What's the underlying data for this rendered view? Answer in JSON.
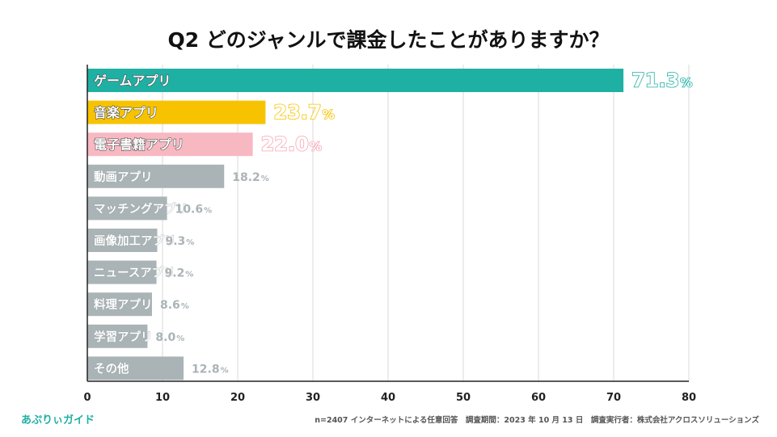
{
  "title": "Q2 どのジャンルで課金したことがありますか？",
  "chart_data": {
    "type": "bar",
    "orientation": "horizontal",
    "categories": [
      "ゲームアプリ",
      "音楽アプリ",
      "電子書籍アプリ",
      "動画アプリ",
      "マッチングアプリ",
      "画像加工アプリ",
      "ニュースアプリ",
      "料理アプリ",
      "学習アプリ",
      "その他"
    ],
    "values": [
      71.3,
      23.7,
      22.0,
      18.2,
      10.6,
      9.3,
      9.2,
      8.6,
      8.0,
      12.8
    ],
    "value_labels": [
      "71.3",
      "23.7",
      "22.0",
      "18.2",
      "10.6",
      "9.3",
      "9.2",
      "8.6",
      "8.0",
      "12.8"
    ],
    "unit": "%",
    "colors": [
      "#1fb0a4",
      "#f7c300",
      "#f8b8c2",
      "#aab4b6",
      "#aab4b6",
      "#aab4b6",
      "#aab4b6",
      "#aab4b6",
      "#aab4b6",
      "#aab4b6"
    ],
    "label_text_colors": [
      "#ffffff",
      "#ffffff",
      "#ffffff",
      "#ffffff",
      "#ffffff",
      "#ffffff",
      "#ffffff",
      "#ffffff",
      "#ffffff",
      "#ffffff"
    ],
    "value_colors": [
      "#1fb0a4",
      "#f7c300",
      "#f8a5b4",
      "#aab4b6",
      "#aab4b6",
      "#aab4b6",
      "#aab4b6",
      "#aab4b6",
      "#aab4b6",
      "#aab4b6"
    ],
    "xlim": [
      0,
      80
    ],
    "xticks": [
      0,
      10,
      20,
      30,
      40,
      50,
      60,
      70,
      80
    ],
    "grid": true,
    "xlabel": "",
    "ylabel": ""
  },
  "brand": "あぷりぃガイド",
  "footnote": "n=2407 インターネットによる任意回答　調査期間：2023 年 10 月 13 日　調査実行者：株式会社アクロスソリューションズ"
}
